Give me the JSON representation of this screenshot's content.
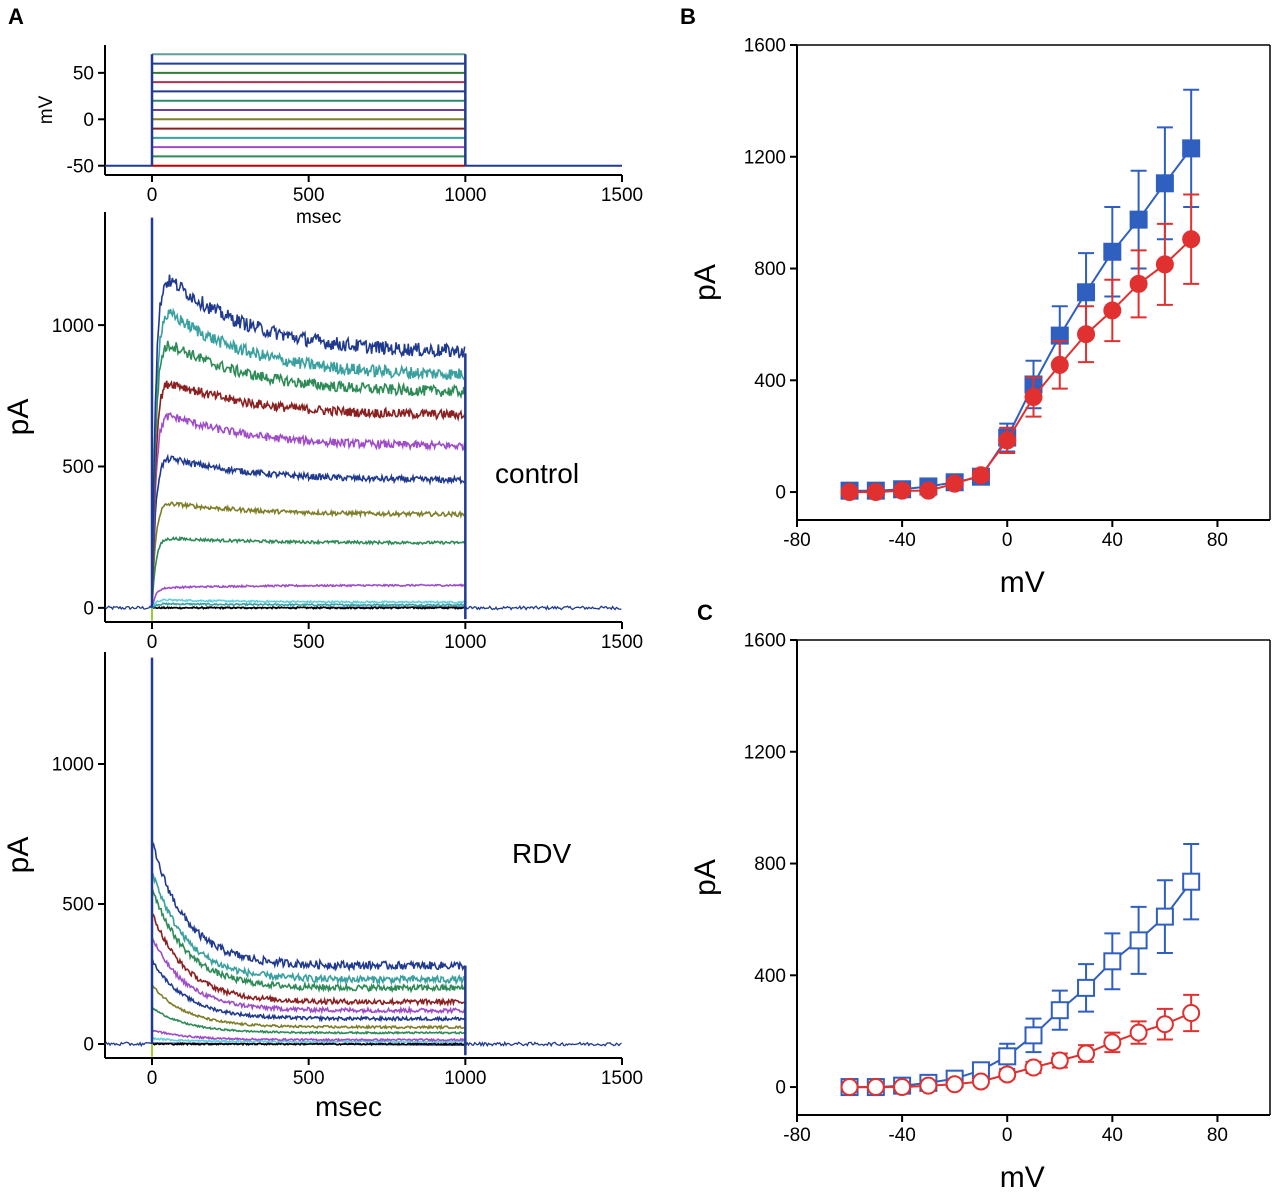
{
  "panels": {
    "a": "A",
    "b": "B",
    "c": "C"
  },
  "trace_colors": [
    "#c00000",
    "#2e8b57",
    "#9f4cc8",
    "#3aa0a0",
    "#8b2020",
    "#7f7f2a",
    "#6a3fa0",
    "#2a8a6a",
    "#203a8f",
    "#b03050",
    "#2e7d32",
    "#1f3f8f",
    "#5f9ea0"
  ],
  "chart_data": [
    {
      "id": "protocol",
      "type": "line",
      "title": "",
      "xlabel": "msec",
      "ylabel": "mV",
      "xlim": [
        -150,
        1500
      ],
      "ylim": [
        -60,
        80
      ],
      "xticks": [
        "0",
        "500",
        "1000",
        "1500"
      ],
      "xtick_values": [
        0,
        500,
        1000,
        1500
      ],
      "yticks": [
        "-50",
        "0",
        "50"
      ],
      "ytick_values": [
        -50,
        0,
        50
      ],
      "holding_mV": -50,
      "step_start_ms": 0,
      "step_end_ms": 1000,
      "step_levels_mV": [
        -50,
        -40,
        -30,
        -20,
        -10,
        0,
        10,
        20,
        30,
        40,
        50,
        60,
        70
      ]
    },
    {
      "id": "control-traces",
      "type": "line",
      "label": "control",
      "xlabel": "",
      "ylabel": "pA",
      "xlim": [
        -150,
        1500
      ],
      "ylim": [
        -50,
        1400
      ],
      "xticks": [
        "0",
        "500",
        "1000",
        "1500"
      ],
      "xtick_values": [
        0,
        500,
        1000,
        1500
      ],
      "yticks": [
        "0",
        "500",
        "1000"
      ],
      "ytick_values": [
        0,
        500,
        1000
      ],
      "series": [
        {
          "name": "70 mV",
          "color": "#203a8f",
          "peak": 1230,
          "end": 900
        },
        {
          "name": "60 mV",
          "color": "#3aa0a0",
          "peak": 1100,
          "end": 820
        },
        {
          "name": "50 mV",
          "color": "#2e8b57",
          "peak": 980,
          "end": 760
        },
        {
          "name": "40 mV",
          "color": "#8b2020",
          "peak": 830,
          "end": 680
        },
        {
          "name": "30 mV",
          "color": "#9f4cc8",
          "peak": 710,
          "end": 570
        },
        {
          "name": "20 mV",
          "color": "#203a8f",
          "peak": 550,
          "end": 450
        },
        {
          "name": "10 mV",
          "color": "#7f7f2a",
          "peak": 380,
          "end": 330
        },
        {
          "name": "0 mV",
          "color": "#2e8b57",
          "peak": 250,
          "end": 230
        },
        {
          "name": "-10 mV",
          "color": "#9f4cc8",
          "peak": 70,
          "end": 80
        },
        {
          "name": "-20 mV",
          "color": "#5fd0e0",
          "peak": 30,
          "end": 20
        },
        {
          "name": "-30 mV",
          "color": "#3aa0a0",
          "peak": 15,
          "end": 10
        },
        {
          "name": "-50 mV",
          "color": "#000000",
          "peak": 0,
          "end": 0
        }
      ]
    },
    {
      "id": "rdv-traces",
      "type": "line",
      "label": "RDV",
      "xlabel": "msec",
      "ylabel": "pA",
      "xlim": [
        -150,
        1500
      ],
      "ylim": [
        -50,
        1400
      ],
      "xticks": [
        "0",
        "500",
        "1000",
        "1500"
      ],
      "xtick_values": [
        0,
        500,
        1000,
        1500
      ],
      "yticks": [
        "0",
        "500",
        "1000"
      ],
      "ytick_values": [
        0,
        500,
        1000
      ],
      "series": [
        {
          "name": "70 mV",
          "color": "#203a8f",
          "peak": 720,
          "end": 280
        },
        {
          "name": "60 mV",
          "color": "#3aa0a0",
          "peak": 620,
          "end": 230
        },
        {
          "name": "50 mV",
          "color": "#2e8b57",
          "peak": 560,
          "end": 200
        },
        {
          "name": "40 mV",
          "color": "#8b2020",
          "peak": 470,
          "end": 150
        },
        {
          "name": "30 mV",
          "color": "#9f4cc8",
          "peak": 380,
          "end": 120
        },
        {
          "name": "20 mV",
          "color": "#203a8f",
          "peak": 300,
          "end": 90
        },
        {
          "name": "10 mV",
          "color": "#7f7f2a",
          "peak": 210,
          "end": 60
        },
        {
          "name": "0 mV",
          "color": "#2e8b57",
          "peak": 130,
          "end": 40
        },
        {
          "name": "-10 mV",
          "color": "#9f4cc8",
          "peak": 50,
          "end": 15
        },
        {
          "name": "-20 mV",
          "color": "#5fd0e0",
          "peak": 20,
          "end": 8
        },
        {
          "name": "-50 mV",
          "color": "#000000",
          "peak": 0,
          "end": 0
        }
      ]
    },
    {
      "id": "iv-b",
      "type": "line",
      "xlabel": "mV",
      "ylabel": "pA",
      "xlim": [
        -80,
        100
      ],
      "ylim": [
        -100,
        1600
      ],
      "xticks": [
        "-80",
        "-40",
        "0",
        "40",
        "80"
      ],
      "xtick_values": [
        -80,
        -40,
        0,
        40,
        80
      ],
      "yticks": [
        "0",
        "400",
        "800",
        "1200",
        "1600"
      ],
      "ytick_values": [
        0,
        400,
        800,
        1200,
        1600
      ],
      "x": [
        -60,
        -50,
        -40,
        -30,
        -20,
        -10,
        0,
        10,
        20,
        30,
        40,
        50,
        60,
        70
      ],
      "series": [
        {
          "name": "blue filled square",
          "color": "#2f5fbf",
          "marker": "square",
          "filled": true,
          "values": [
            5,
            5,
            10,
            20,
            35,
            55,
            195,
            385,
            560,
            715,
            860,
            975,
            1105,
            1230
          ],
          "errors": [
            5,
            5,
            8,
            10,
            15,
            20,
            50,
            85,
            105,
            140,
            160,
            175,
            200,
            210
          ]
        },
        {
          "name": "red filled circle",
          "color": "#e03030",
          "marker": "circle",
          "filled": true,
          "values": [
            0,
            0,
            5,
            5,
            30,
            60,
            185,
            340,
            455,
            565,
            650,
            745,
            815,
            905
          ],
          "errors": [
            5,
            5,
            5,
            8,
            12,
            18,
            45,
            70,
            85,
            100,
            110,
            120,
            145,
            160
          ]
        }
      ]
    },
    {
      "id": "iv-c",
      "type": "line",
      "xlabel": "mV",
      "ylabel": "pA",
      "xlim": [
        -80,
        100
      ],
      "ylim": [
        -100,
        1600
      ],
      "xticks": [
        "-80",
        "-40",
        "0",
        "40",
        "80"
      ],
      "xtick_values": [
        -80,
        -40,
        0,
        40,
        80
      ],
      "yticks": [
        "0",
        "400",
        "800",
        "1200",
        "1600"
      ],
      "ytick_values": [
        0,
        400,
        800,
        1200,
        1600
      ],
      "x": [
        -60,
        -50,
        -40,
        -30,
        -20,
        -10,
        0,
        10,
        20,
        30,
        40,
        50,
        60,
        70
      ],
      "series": [
        {
          "name": "blue open square",
          "color": "#2f5fbf",
          "marker": "square",
          "filled": false,
          "values": [
            0,
            0,
            5,
            15,
            30,
            60,
            110,
            185,
            275,
            355,
            450,
            525,
            610,
            735
          ],
          "errors": [
            5,
            5,
            5,
            10,
            15,
            25,
            45,
            60,
            70,
            85,
            100,
            120,
            130,
            135
          ]
        },
        {
          "name": "red open circle",
          "color": "#e03030",
          "marker": "circle",
          "filled": false,
          "values": [
            0,
            0,
            0,
            5,
            10,
            20,
            45,
            70,
            95,
            120,
            160,
            195,
            225,
            265
          ],
          "errors": [
            5,
            5,
            5,
            5,
            8,
            10,
            15,
            20,
            25,
            30,
            35,
            40,
            55,
            65
          ]
        }
      ]
    }
  ]
}
